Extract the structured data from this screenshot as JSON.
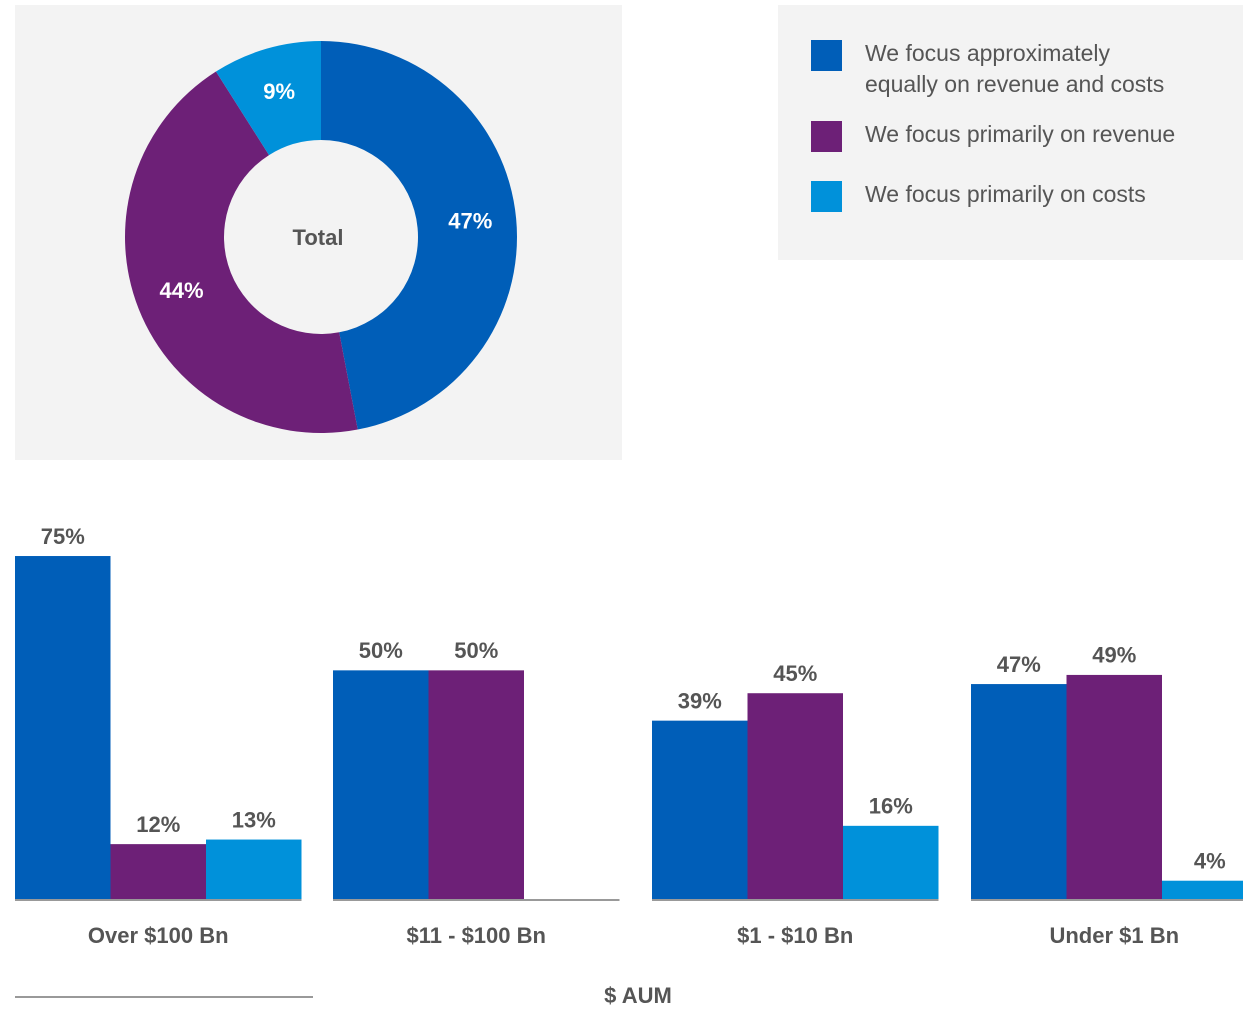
{
  "chart_data": [
    {
      "type": "pie",
      "donut": true,
      "inner_label": "Total",
      "categories": [
        "We focus approximately equally on revenue and costs",
        "We focus primarily on revenue",
        "We focus primarily on costs"
      ],
      "values": [
        47,
        44,
        9
      ],
      "value_labels": [
        "47%",
        "44%",
        "9%"
      ],
      "colors": [
        "#005eb8",
        "#6d2077",
        "#0091da"
      ]
    },
    {
      "type": "bar",
      "categories": [
        "Over $100 Bn",
        "$11 - $100 Bn",
        "$1 - $10 Bn",
        "Under $1 Bn"
      ],
      "series": [
        {
          "color": "#005eb8",
          "values": [
            75,
            50,
            39,
            47
          ],
          "value_labels": [
            "75%",
            "50%",
            "39%",
            "47%"
          ]
        },
        {
          "color": "#6d2077",
          "values": [
            12,
            50,
            45,
            49
          ],
          "value_labels": [
            "12%",
            "50%",
            "45%",
            "49%"
          ]
        },
        {
          "color": "#0091da",
          "values": [
            13,
            null,
            16,
            4
          ],
          "value_labels": [
            "13%",
            null,
            "16%",
            "4%"
          ]
        }
      ],
      "x_label": "$ AUM"
    }
  ]
}
